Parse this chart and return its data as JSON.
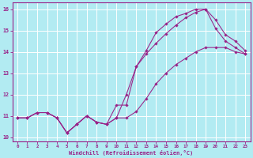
{
  "xlabel": "Windchill (Refroidissement éolien,°C)",
  "bg_color": "#b2ebf2",
  "line_color": "#992288",
  "grid_color": "#ffffff",
  "xlim_min": -0.5,
  "xlim_max": 23.5,
  "ylim_min": 9.8,
  "ylim_max": 16.3,
  "xticks": [
    0,
    1,
    2,
    3,
    4,
    5,
    6,
    7,
    8,
    9,
    10,
    11,
    12,
    13,
    14,
    15,
    16,
    17,
    18,
    19,
    20,
    21,
    22,
    23
  ],
  "yticks": [
    10,
    11,
    12,
    13,
    14,
    15,
    16
  ],
  "line1_x": [
    0,
    1,
    2,
    3,
    4,
    5,
    6,
    7,
    8,
    9,
    10,
    11,
    12,
    13,
    14,
    15,
    16,
    17,
    18,
    19,
    20,
    21,
    22,
    23
  ],
  "line1_y": [
    10.9,
    10.9,
    11.15,
    11.15,
    10.9,
    10.2,
    10.6,
    11.0,
    10.7,
    10.6,
    10.9,
    10.9,
    11.2,
    11.8,
    12.5,
    13.0,
    13.4,
    13.7,
    14.0,
    14.2,
    14.2,
    14.2,
    14.0,
    13.9
  ],
  "line2_x": [
    0,
    1,
    2,
    3,
    4,
    5,
    6,
    7,
    8,
    9,
    10,
    11,
    12,
    13,
    14,
    15,
    16,
    17,
    18,
    19,
    20,
    21,
    22,
    23
  ],
  "line2_y": [
    10.9,
    10.9,
    11.15,
    11.15,
    10.9,
    10.2,
    10.6,
    11.0,
    10.7,
    10.6,
    11.5,
    11.5,
    13.3,
    14.05,
    14.9,
    15.3,
    15.65,
    15.8,
    16.0,
    16.0,
    15.1,
    14.5,
    14.2,
    13.9
  ],
  "line3_x": [
    0,
    1,
    2,
    3,
    4,
    5,
    6,
    7,
    8,
    9,
    10,
    11,
    12,
    13,
    14,
    15,
    16,
    17,
    18,
    19,
    20,
    21,
    22,
    23
  ],
  "line3_y": [
    10.9,
    10.9,
    11.15,
    11.15,
    10.9,
    10.2,
    10.6,
    11.0,
    10.7,
    10.6,
    10.9,
    12.0,
    13.3,
    13.9,
    14.4,
    14.85,
    15.25,
    15.6,
    15.85,
    16.0,
    15.5,
    14.8,
    14.5,
    14.05
  ]
}
